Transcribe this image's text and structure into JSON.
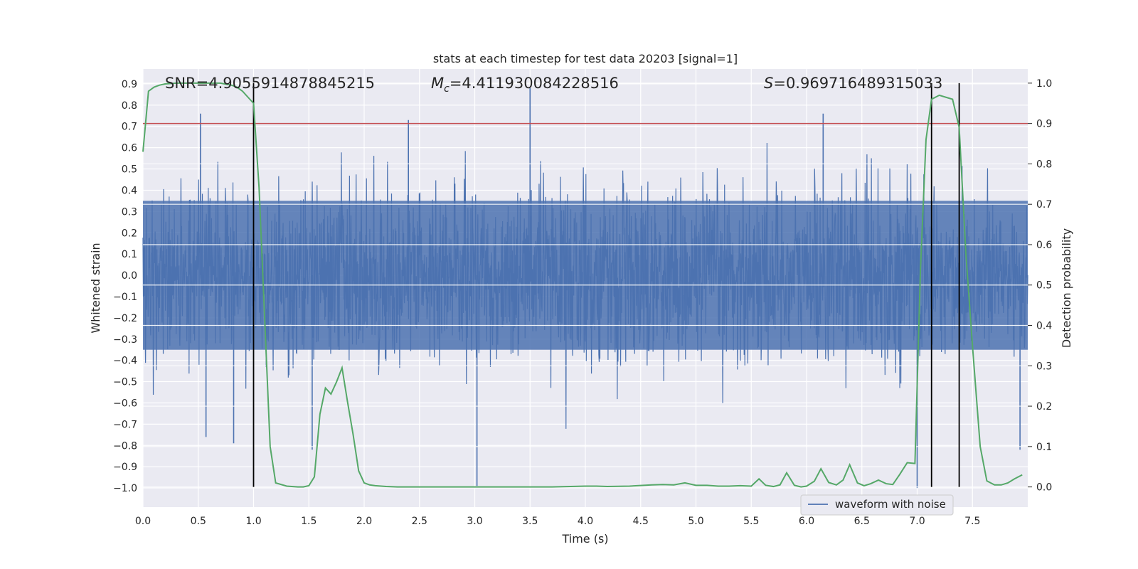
{
  "chart_data": {
    "type": "line",
    "title": "stats at each timestep for test data 20203 [signal=1]",
    "xlabel": "Time (s)",
    "ylabel_left": "Whitened strain",
    "ylabel_right": "Detection probability",
    "xlim": [
      0.0,
      8.0
    ],
    "ylim_left": [
      -1.09,
      0.97
    ],
    "ylim_right": [
      -0.05,
      1.035
    ],
    "x_ticks": [
      0.0,
      0.5,
      1.0,
      1.5,
      2.0,
      2.5,
      3.0,
      3.5,
      4.0,
      4.5,
      5.0,
      5.5,
      6.0,
      6.5,
      7.0,
      7.5
    ],
    "x_tick_labels": [
      "0.0",
      "0.5",
      "1.0",
      "1.5",
      "2.0",
      "2.5",
      "3.0",
      "3.5",
      "4.0",
      "4.5",
      "5.0",
      "5.5",
      "6.0",
      "6.5",
      "7.0",
      "7.5"
    ],
    "y_left_ticks": [
      -1.0,
      -0.9,
      -0.8,
      -0.7,
      -0.6,
      -0.5,
      -0.4,
      -0.3,
      -0.2,
      -0.1,
      0.0,
      0.1,
      0.2,
      0.3,
      0.4,
      0.5,
      0.6,
      0.7,
      0.8,
      0.9
    ],
    "y_left_tick_labels": [
      "−1.0",
      "−0.9",
      "−0.8",
      "−0.7",
      "−0.6",
      "−0.5",
      "−0.4",
      "−0.3",
      "−0.2",
      "−0.1",
      "0.0",
      "0.1",
      "0.2",
      "0.3",
      "0.4",
      "0.5",
      "0.6",
      "0.7",
      "0.8",
      "0.9"
    ],
    "y_right_ticks": [
      0.0,
      0.1,
      0.2,
      0.3,
      0.4,
      0.5,
      0.6,
      0.7,
      0.8,
      0.9,
      1.0
    ],
    "y_right_tick_labels": [
      "0.0",
      "0.1",
      "0.2",
      "0.3",
      "0.4",
      "0.5",
      "0.6",
      "0.7",
      "0.8",
      "0.9",
      "1.0"
    ],
    "grid": true,
    "legend_position": "bottom-right",
    "annotations": {
      "snr": "SNR=4.9055914878845215",
      "mc_symbol": "M",
      "mc_sub": "c",
      "mc_value": "=4.411930084228516",
      "s_symbol": "S",
      "s_value": "=0.969716489315033"
    },
    "threshold_line": {
      "y_right": 0.9,
      "color": "#c44e52"
    },
    "vertical_lines": {
      "x": [
        1.0,
        7.13,
        7.38
      ],
      "y_right_range": [
        0.0,
        1.0
      ],
      "color": "#000000"
    },
    "series": [
      {
        "name": "waveform with noise",
        "kind": "noise-waveform",
        "color": "#4c72b0",
        "x_range": [
          0.0,
          8.0
        ],
        "sample_count": 2400,
        "core_amplitude_range": [
          -0.35,
          0.35
        ],
        "typical_peaks": {
          "upper": 0.5,
          "lower": -0.45
        },
        "extreme_peaks": [
          {
            "x": 0.52,
            "y": 0.76
          },
          {
            "x": 3.5,
            "y": 0.88
          },
          {
            "x": 6.15,
            "y": 0.76
          },
          {
            "x": 2.4,
            "y": 0.73
          },
          {
            "x": 0.57,
            "y": -0.76
          },
          {
            "x": 0.82,
            "y": -0.79
          },
          {
            "x": 3.02,
            "y": -0.99
          },
          {
            "x": 1.53,
            "y": -0.82
          },
          {
            "x": 7.0,
            "y": -1.0
          },
          {
            "x": 7.93,
            "y": -0.82
          }
        ]
      },
      {
        "name": "",
        "kind": "detection-probability",
        "axis": "right",
        "color": "#55a868",
        "x": [
          0.0,
          0.05,
          0.1,
          0.15,
          0.2,
          0.3,
          0.4,
          0.5,
          0.6,
          0.7,
          0.8,
          0.85,
          0.9,
          0.95,
          1.0,
          1.05,
          1.1,
          1.15,
          1.2,
          1.3,
          1.4,
          1.45,
          1.5,
          1.55,
          1.6,
          1.65,
          1.7,
          1.75,
          1.8,
          1.85,
          1.9,
          1.95,
          2.0,
          2.05,
          2.1,
          2.2,
          2.3,
          2.5,
          2.7,
          3.0,
          3.3,
          3.7,
          4.0,
          4.1,
          4.2,
          4.4,
          4.6,
          4.7,
          4.8,
          4.9,
          5.0,
          5.1,
          5.2,
          5.3,
          5.4,
          5.5,
          5.57,
          5.63,
          5.7,
          5.76,
          5.82,
          5.89,
          5.95,
          6.0,
          6.07,
          6.13,
          6.2,
          6.27,
          6.33,
          6.39,
          6.46,
          6.52,
          6.58,
          6.65,
          6.72,
          6.78,
          6.84,
          6.91,
          6.98,
          7.03,
          7.08,
          7.13,
          7.2,
          7.26,
          7.32,
          7.38,
          7.44,
          7.5,
          7.57,
          7.63,
          7.7,
          7.76,
          7.82,
          7.88,
          7.95
        ],
        "values": [
          0.83,
          0.98,
          0.99,
          0.995,
          0.998,
          1.0,
          1.0,
          1.0,
          1.0,
          1.0,
          0.995,
          0.99,
          0.98,
          0.965,
          0.95,
          0.74,
          0.42,
          0.1,
          0.01,
          0.002,
          0.0,
          0.0,
          0.003,
          0.025,
          0.18,
          0.245,
          0.23,
          0.26,
          0.295,
          0.21,
          0.13,
          0.04,
          0.01,
          0.005,
          0.003,
          0.001,
          0.0,
          0.0,
          0.0,
          0.0,
          0.0,
          0.0,
          0.002,
          0.002,
          0.001,
          0.002,
          0.005,
          0.006,
          0.005,
          0.01,
          0.004,
          0.004,
          0.002,
          0.002,
          0.003,
          0.002,
          0.02,
          0.004,
          0.001,
          0.005,
          0.035,
          0.004,
          0.0,
          0.002,
          0.014,
          0.045,
          0.011,
          0.005,
          0.017,
          0.055,
          0.01,
          0.003,
          0.008,
          0.017,
          0.008,
          0.006,
          0.03,
          0.06,
          0.058,
          0.54,
          0.86,
          0.96,
          0.97,
          0.965,
          0.96,
          0.89,
          0.58,
          0.35,
          0.1,
          0.015,
          0.005,
          0.005,
          0.01,
          0.02,
          0.03
        ]
      }
    ]
  }
}
